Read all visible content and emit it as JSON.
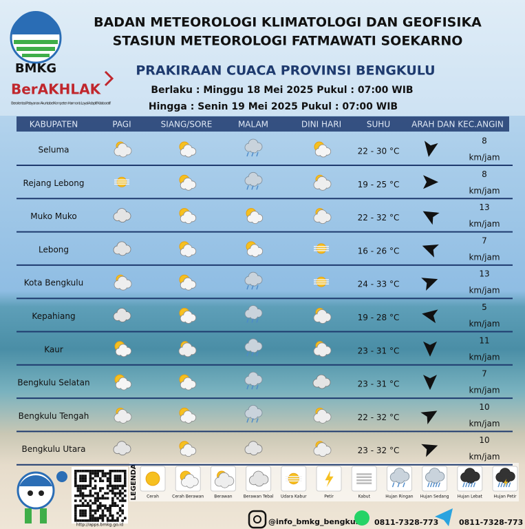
{
  "header": {
    "title_1": "BADAN METEOROLOGI KLIMATOLOGI DAN GEOFISIKA",
    "title_2": "STASIUN METEOROLOGI FATMAWATI SOEKARNO",
    "subtitle": "PRAKIRAAN CUACA PROVINSI BENGKULU",
    "valid_from": "Berlaku : Minggu 18 Mei 2025 Pukul : 07:00 WIB",
    "valid_until": "Hingga : Senin 19 Mei 2025 Pukul : 07:00 WIB",
    "logo_text": "BMKG",
    "brand": "BerAKHLAK",
    "brand_tagline": "Berorientasi Pelayanan Akuntabel Kompeten Harmonis Loyal Adaptif Kolaboratif"
  },
  "table": {
    "columns": [
      "KABUPATEN",
      "PAGI",
      "SIANG/SORE",
      "MALAM",
      "DINI HARI",
      "SUHU",
      "ARAH DAN KEC.ANGIN"
    ],
    "rows": [
      [
        "Seluma",
        "22 - 30 °C",
        8
      ],
      [
        "Rejang Lebong",
        "19 - 25 °C",
        8
      ],
      [
        "Muko Muko",
        "22 - 32 °C",
        13
      ],
      [
        "Lebong",
        "16 - 26 °C",
        7
      ],
      [
        "Kota Bengkulu",
        "24 - 33 °C",
        13
      ],
      [
        "Kepahiang",
        "19 - 28 °C",
        5
      ],
      [
        "Kaur",
        "23 - 31 °C",
        11
      ],
      [
        "Bengkulu Selatan",
        "23 - 31 °C",
        7
      ],
      [
        "Bengkulu Tengah",
        "22 - 32 °C",
        10
      ],
      [
        "Bengkulu Utara",
        "23 - 32 °C",
        10
      ]
    ],
    "wind_unit": "km/jam"
  },
  "legend": {
    "title": "LEGENDA",
    "items": [
      "Cerah",
      "Cerah Berawan",
      "Berawan",
      "Berawan Tebal",
      "Udara Kabur",
      "Petir",
      "Kabut",
      "Hujan Ringan",
      "Hujan Sedang",
      "Hujan Lebat",
      "Hujan Petir"
    ]
  },
  "footer": {
    "url": "http://apps.bmkg.go.id",
    "instagram": "@info_bmkg_bengkul",
    "whatsapp": "0811-7328-773",
    "telegram": "0811-7328-773"
  }
}
